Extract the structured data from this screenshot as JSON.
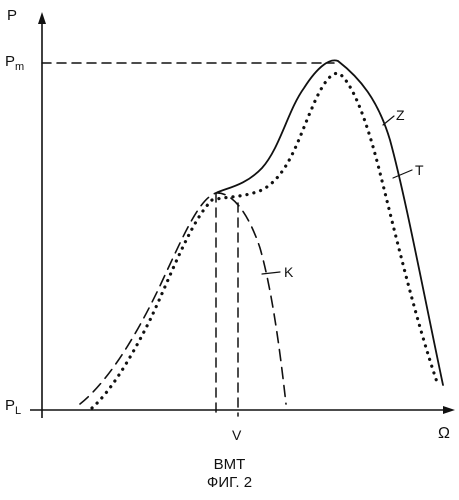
{
  "axes": {
    "y_label": "P",
    "x_label": "Ω",
    "y_tick_top": {
      "main": "P",
      "sub": "m"
    },
    "y_tick_bottom": {
      "main": "P",
      "sub": "L"
    },
    "x_tick": "V"
  },
  "curve_labels": {
    "z": "Z",
    "t": "T",
    "k": "K"
  },
  "caption": {
    "line1": "BMT",
    "line2": "ФИГ. 2"
  }
}
